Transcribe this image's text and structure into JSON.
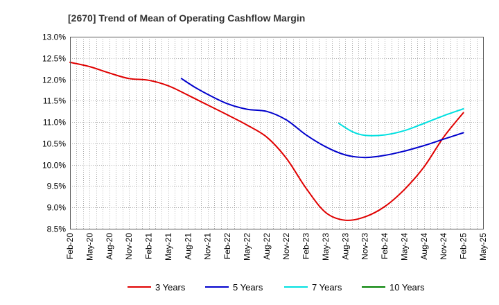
{
  "chart_data": {
    "type": "line",
    "title": "[2670]  Trend of Mean of Operating Cashflow Margin",
    "xlabel": "",
    "ylabel": "",
    "ylim": [
      8.5,
      13.0
    ],
    "y_ticks": [
      "8.5%",
      "9.0%",
      "9.5%",
      "10.0%",
      "10.5%",
      "11.0%",
      "11.5%",
      "12.0%",
      "12.5%",
      "13.0%"
    ],
    "x_tick_labels": [
      "Feb-20",
      "May-20",
      "Aug-20",
      "Nov-20",
      "Feb-21",
      "May-21",
      "Aug-21",
      "Nov-21",
      "Feb-22",
      "May-22",
      "Aug-22",
      "Nov-22",
      "Feb-23",
      "May-23",
      "Aug-23",
      "Nov-23",
      "Feb-24",
      "May-24",
      "Aug-24",
      "Nov-24",
      "Feb-25",
      "May-25"
    ],
    "x_range_months": [
      0,
      63
    ],
    "grid": true,
    "legend_position": "bottom",
    "series": [
      {
        "name": "3 Years",
        "color": "#e00000",
        "x": [
          0,
          3,
          6,
          9,
          12,
          15,
          18,
          21,
          24,
          27,
          30,
          33,
          36,
          39,
          42,
          45,
          48,
          51,
          54,
          57,
          60
        ],
        "values": [
          12.4,
          12.3,
          12.15,
          12.02,
          11.98,
          11.85,
          11.63,
          11.4,
          11.17,
          10.93,
          10.65,
          10.15,
          9.45,
          8.88,
          8.7,
          8.78,
          9.02,
          9.42,
          9.95,
          10.65,
          11.22
        ]
      },
      {
        "name": "5 Years",
        "color": "#0000cc",
        "x": [
          17,
          19,
          21,
          24,
          27,
          30,
          33,
          36,
          39,
          42,
          45,
          48,
          51,
          54,
          57,
          60
        ],
        "values": [
          12.02,
          11.82,
          11.65,
          11.43,
          11.3,
          11.25,
          11.05,
          10.7,
          10.42,
          10.23,
          10.17,
          10.22,
          10.32,
          10.45,
          10.6,
          10.75
        ]
      },
      {
        "name": "7 Years",
        "color": "#00e0e0",
        "x": [
          41,
          43,
          45,
          48,
          51,
          54,
          57,
          60
        ],
        "values": [
          10.97,
          10.78,
          10.69,
          10.7,
          10.8,
          10.97,
          11.15,
          11.31
        ]
      },
      {
        "name": "10 Years",
        "color": "#008000",
        "x": [],
        "values": []
      }
    ]
  }
}
